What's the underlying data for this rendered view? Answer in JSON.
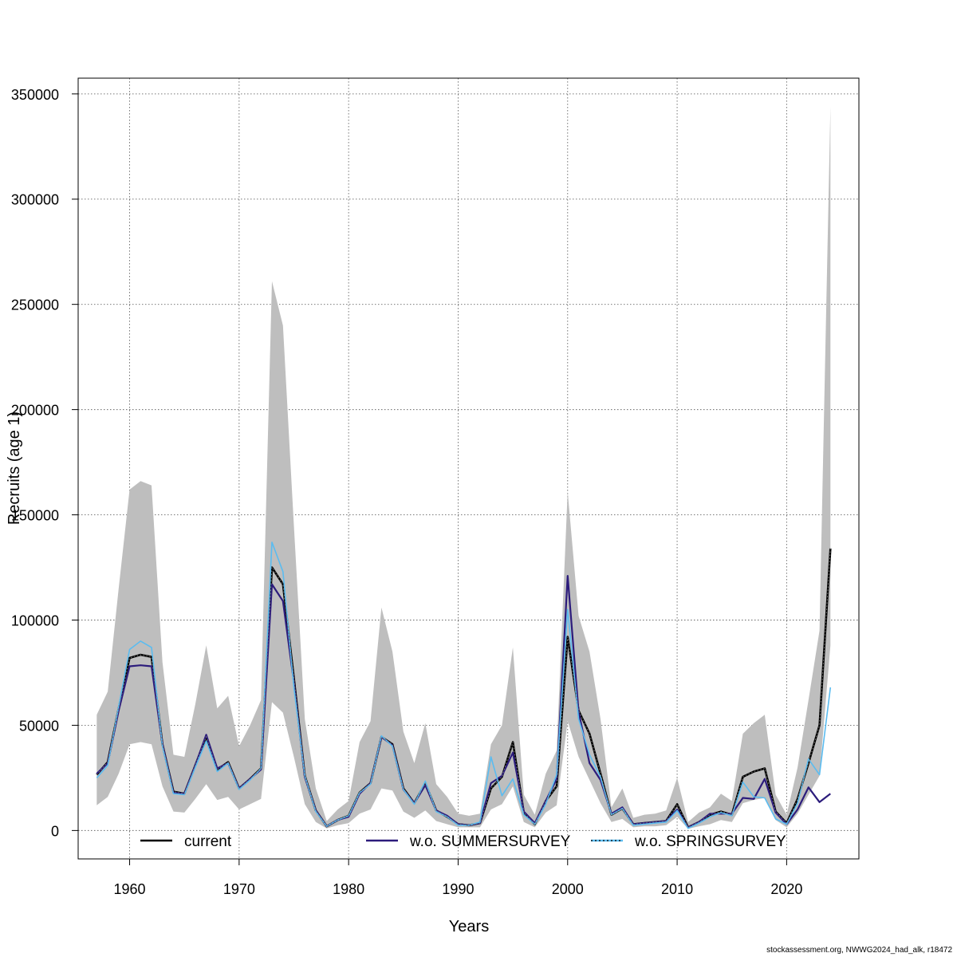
{
  "chart_data": {
    "type": "line",
    "xlabel": "Years",
    "ylabel": "Recruits (age 1)",
    "xlim": [
      1955.3,
      2026.6
    ],
    "ylim": [
      -13500,
      357500
    ],
    "xticks": [
      1960,
      1970,
      1980,
      1990,
      2000,
      2010,
      2020
    ],
    "yticks": [
      0,
      50000,
      100000,
      150000,
      200000,
      250000,
      300000,
      350000
    ],
    "grid": true,
    "legend_position": "bottom",
    "x": [
      1957,
      1958,
      1959,
      1960,
      1961,
      1962,
      1963,
      1964,
      1965,
      1966,
      1967,
      1968,
      1969,
      1970,
      1971,
      1972,
      1973,
      1974,
      1975,
      1976,
      1977,
      1978,
      1979,
      1980,
      1981,
      1982,
      1983,
      1984,
      1985,
      1986,
      1987,
      1988,
      1989,
      1990,
      1991,
      1992,
      1993,
      1994,
      1995,
      1996,
      1997,
      1998,
      1999,
      2000,
      2001,
      2002,
      2003,
      2004,
      2005,
      2006,
      2007,
      2008,
      2009,
      2010,
      2011,
      2012,
      2013,
      2014,
      2015,
      2016,
      2017,
      2018,
      2019,
      2020,
      2021,
      2022,
      2023,
      2024
    ],
    "confidence_band": {
      "color": "#bebebe",
      "upper": [
        55000,
        66000,
        115000,
        162000,
        166000,
        164000,
        80000,
        36000,
        35000,
        60000,
        88000,
        58000,
        64000,
        40000,
        50000,
        62000,
        261000,
        240000,
        145000,
        53000,
        20000,
        4500,
        10000,
        14000,
        42000,
        52000,
        106000,
        85000,
        47000,
        32000,
        51000,
        22000,
        16000,
        8000,
        7000,
        8000,
        41000,
        50000,
        87000,
        17000,
        7500,
        27000,
        38000,
        161000,
        102000,
        85000,
        53000,
        11000,
        20000,
        6000,
        7500,
        8000,
        9500,
        25000,
        4000,
        8500,
        11000,
        17500,
        14000,
        46000,
        51000,
        55000,
        17000,
        7500,
        30000,
        62000,
        95000,
        344000
      ],
      "lower": [
        12000,
        16000,
        27000,
        41000,
        42000,
        41000,
        21000,
        9000,
        8500,
        15000,
        22000,
        14500,
        16000,
        10000,
        12500,
        15000,
        61000,
        56000,
        35000,
        12500,
        4000,
        1000,
        2500,
        3500,
        8000,
        10000,
        20000,
        19000,
        9000,
        6000,
        9500,
        4500,
        3000,
        1500,
        1500,
        1500,
        10000,
        12500,
        21000,
        4000,
        1500,
        8500,
        12000,
        52000,
        35000,
        24000,
        13000,
        4000,
        5500,
        1500,
        2000,
        2000,
        2500,
        6500,
        800,
        2000,
        3000,
        5000,
        4000,
        13000,
        14500,
        15500,
        5000,
        1500,
        8000,
        17000,
        26000,
        88000
      ]
    },
    "series": [
      {
        "name": "current",
        "color": "#000000",
        "values": [
          26500,
          32500,
          58000,
          82000,
          83500,
          82500,
          41000,
          18500,
          17500,
          31000,
          44500,
          29000,
          32500,
          20000,
          24500,
          29500,
          125000,
          117000,
          72500,
          26000,
          9500,
          2000,
          5000,
          7000,
          18000,
          22500,
          44500,
          41000,
          20000,
          13000,
          22500,
          9500,
          6500,
          3000,
          2500,
          3500,
          20000,
          25500,
          42000,
          8500,
          3000,
          14000,
          21000,
          92000,
          57000,
          46000,
          27000,
          7500,
          10500,
          3000,
          3500,
          4000,
          4500,
          12500,
          1500,
          4000,
          7500,
          9000,
          7500,
          25500,
          28000,
          29500,
          9000,
          3500,
          15000,
          32000,
          50000,
          134000
        ]
      },
      {
        "name": "w.o. SUMMERSURVEY",
        "color": "#2c1c7c",
        "values": [
          27000,
          32000,
          57000,
          78000,
          78500,
          78000,
          41000,
          18000,
          17500,
          31000,
          45500,
          29500,
          32000,
          20000,
          24500,
          29000,
          117000,
          109000,
          70500,
          25500,
          9500,
          2000,
          5000,
          6500,
          17500,
          22500,
          44500,
          40500,
          19500,
          13000,
          21500,
          9500,
          7000,
          3000,
          2500,
          3500,
          22500,
          26000,
          37000,
          9000,
          3500,
          14000,
          24500,
          121000,
          56500,
          32000,
          24000,
          8000,
          11000,
          3000,
          3500,
          4000,
          4500,
          10000,
          1500,
          4000,
          8000,
          8000,
          8000,
          15500,
          15000,
          24500,
          8500,
          3000,
          10000,
          20500,
          13500,
          17500
        ]
      },
      {
        "name": "w.o. SPRINGSURVEY",
        "color": "#5bbcf0",
        "values": [
          25000,
          31000,
          59000,
          86000,
          90000,
          87000,
          40000,
          17500,
          17000,
          30000,
          42500,
          28000,
          32000,
          19500,
          24000,
          29500,
          137000,
          123000,
          68000,
          26000,
          9000,
          2000,
          5000,
          7000,
          18000,
          22000,
          45000,
          40000,
          19500,
          12500,
          23500,
          9000,
          6500,
          2500,
          2500,
          4000,
          35000,
          16500,
          24500,
          7500,
          3000,
          12500,
          26500,
          105000,
          53000,
          36000,
          25500,
          7500,
          10500,
          2500,
          3000,
          3500,
          4000,
          9500,
          1000,
          3500,
          6500,
          8500,
          7000,
          23000,
          16000,
          15500,
          5500,
          3000,
          13000,
          34000,
          26500,
          68000
        ]
      }
    ]
  },
  "footer": "stockassessment.org, NWWG2024_had_alk, r18472"
}
